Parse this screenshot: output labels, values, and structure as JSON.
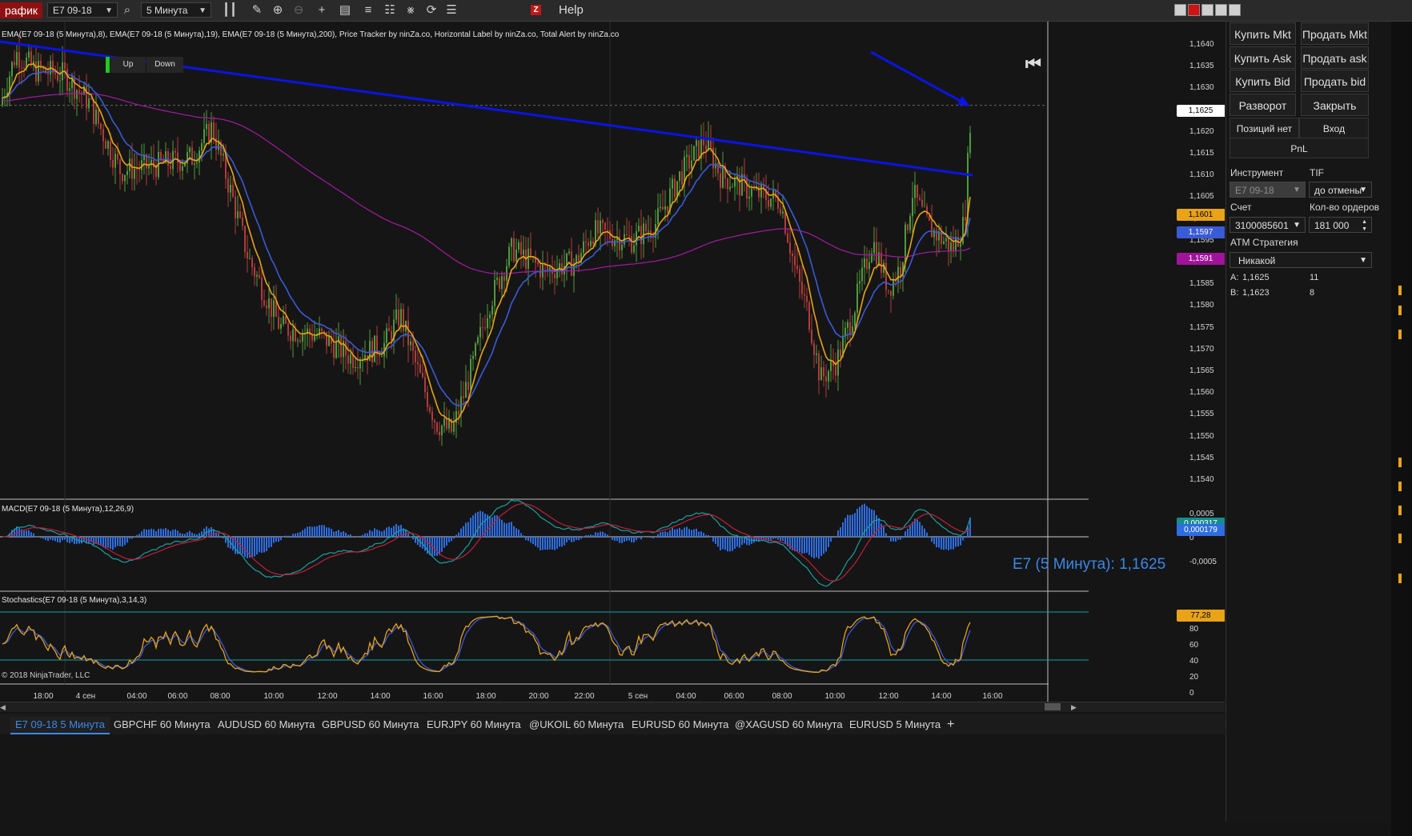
{
  "toolbar": {
    "title": "рафик",
    "instrument": "E7 09-18",
    "interval": "5 Минута",
    "help_label": "Help",
    "z_label": "Z",
    "icons": [
      "search-icon",
      "bar-type-icon",
      "pencil-icon",
      "zoom-in-icon",
      "zoom-out-icon",
      "crosshair-icon",
      "properties-icon",
      "tile-icon",
      "sort-icon",
      "strategy-icon",
      "refresh-icon",
      "list-icon",
      "z-icon"
    ]
  },
  "chart": {
    "indicator_line": "EMA(E7 09-18 (5 Минута),8), EMA(E7 09-18 (5 Минута),19), EMA(E7 09-18 (5 Минута),200), Price Tracker by ninZa.co, Horizontal Label by ninZa.co, Total Alert by ninZa.co",
    "up_label": "Up",
    "down_label": "Down",
    "big_price": "E7 (5 Минута): 1,1625",
    "copyright": "© 2018 NinjaTrader, LLC",
    "price_axis": [
      "1,1640",
      "1,1635",
      "1,1630",
      "1,1625",
      "1,1620",
      "1,1615",
      "1,1610",
      "1,1605",
      "1,1600",
      "1,1595",
      "1,1590",
      "1,1585",
      "1,1580",
      "1,1575",
      "1,1570",
      "1,1565",
      "1,1560",
      "1,1555",
      "1,1550",
      "1,1545",
      "1,1540"
    ],
    "price_tags": [
      {
        "value": "1,1625",
        "bg": "#ffffff",
        "fg": "#000000",
        "price": 1.1625
      },
      {
        "value": "1,1601",
        "bg": "#e8a317",
        "fg": "#000000",
        "price": 1.1601
      },
      {
        "value": "1,1597",
        "bg": "#3a5bd6",
        "fg": "#ffffff",
        "price": 1.1597
      },
      {
        "value": "1,1591",
        "bg": "#a0139a",
        "fg": "#ffffff",
        "price": 1.1591
      }
    ],
    "colors": {
      "ema8": "#e8a317",
      "ema19": "#3a5bd6",
      "ema200": "#9b1a9b",
      "trend": "#0a14e6",
      "up": "#4f9a3c",
      "down": "#b23b3b"
    },
    "macd": {
      "label": "MACD(E7 09-18 (5 Минута),12,26,9)",
      "axis": [
        "0,0005",
        "0",
        "-0,0005"
      ],
      "tags": [
        {
          "value": "0,000317",
          "bg": "#178c8c",
          "fg": "#ffffff"
        },
        {
          "value": "0,000179",
          "bg": "#2f6de0",
          "fg": "#ffffff"
        }
      ]
    },
    "stoch": {
      "label": "Stochastics(E7 09-18 (5 Минута),3,14,3)",
      "axis": [
        "80",
        "60",
        "40",
        "20",
        "0"
      ],
      "tag": {
        "value": "77,28",
        "bg": "#e8a317",
        "fg": "#000000"
      }
    },
    "time_axis": [
      "18:00",
      "4 сен",
      "04:00",
      "06:00",
      "08:00",
      "10:00",
      "12:00",
      "14:00",
      "16:00",
      "18:00",
      "20:00",
      "22:00",
      "5 сен",
      "04:00",
      "06:00",
      "08:00",
      "10:00",
      "12:00",
      "14:00",
      "16:00"
    ]
  },
  "tabs": [
    "E7 09-18 5 Минута",
    "GBPCHF 60 Минута",
    "AUDUSD 60 Минута",
    "GBPUSD 60 Минута",
    "EURJPY 60 Минута",
    "@UKOIL 60 Минута",
    "EURUSD 60 Минута",
    "@XAGUSD 60 Минута",
    "EURUSD 5 Минута"
  ],
  "add_tab": "+",
  "panel": {
    "buttons": [
      [
        "Купить Mkt",
        "Продать Mkt"
      ],
      [
        "Купить Ask",
        "Продать ask"
      ],
      [
        "Купить Bid",
        "Продать bid"
      ],
      [
        "Разворот",
        "Закрыть"
      ]
    ],
    "position": "Позиций нет",
    "entry": "Вход",
    "pnl": "PnL",
    "instrument_label": "Инструмент",
    "tif_label": "TIF",
    "instrument_value": "E7 09-18",
    "tif_value": "до отмены",
    "account_label": "Счет",
    "qty_label": "Кол-во ордеров",
    "account_value": "3100085601",
    "qty_value": "181 000",
    "atm_label": "ATM Стратегия",
    "atm_value": "Никакой",
    "ask_label": "A:",
    "ask_price": "1,1625",
    "ask_size": "11",
    "bid_label": "B:",
    "bid_price": "1,1623",
    "bid_size": "8"
  }
}
